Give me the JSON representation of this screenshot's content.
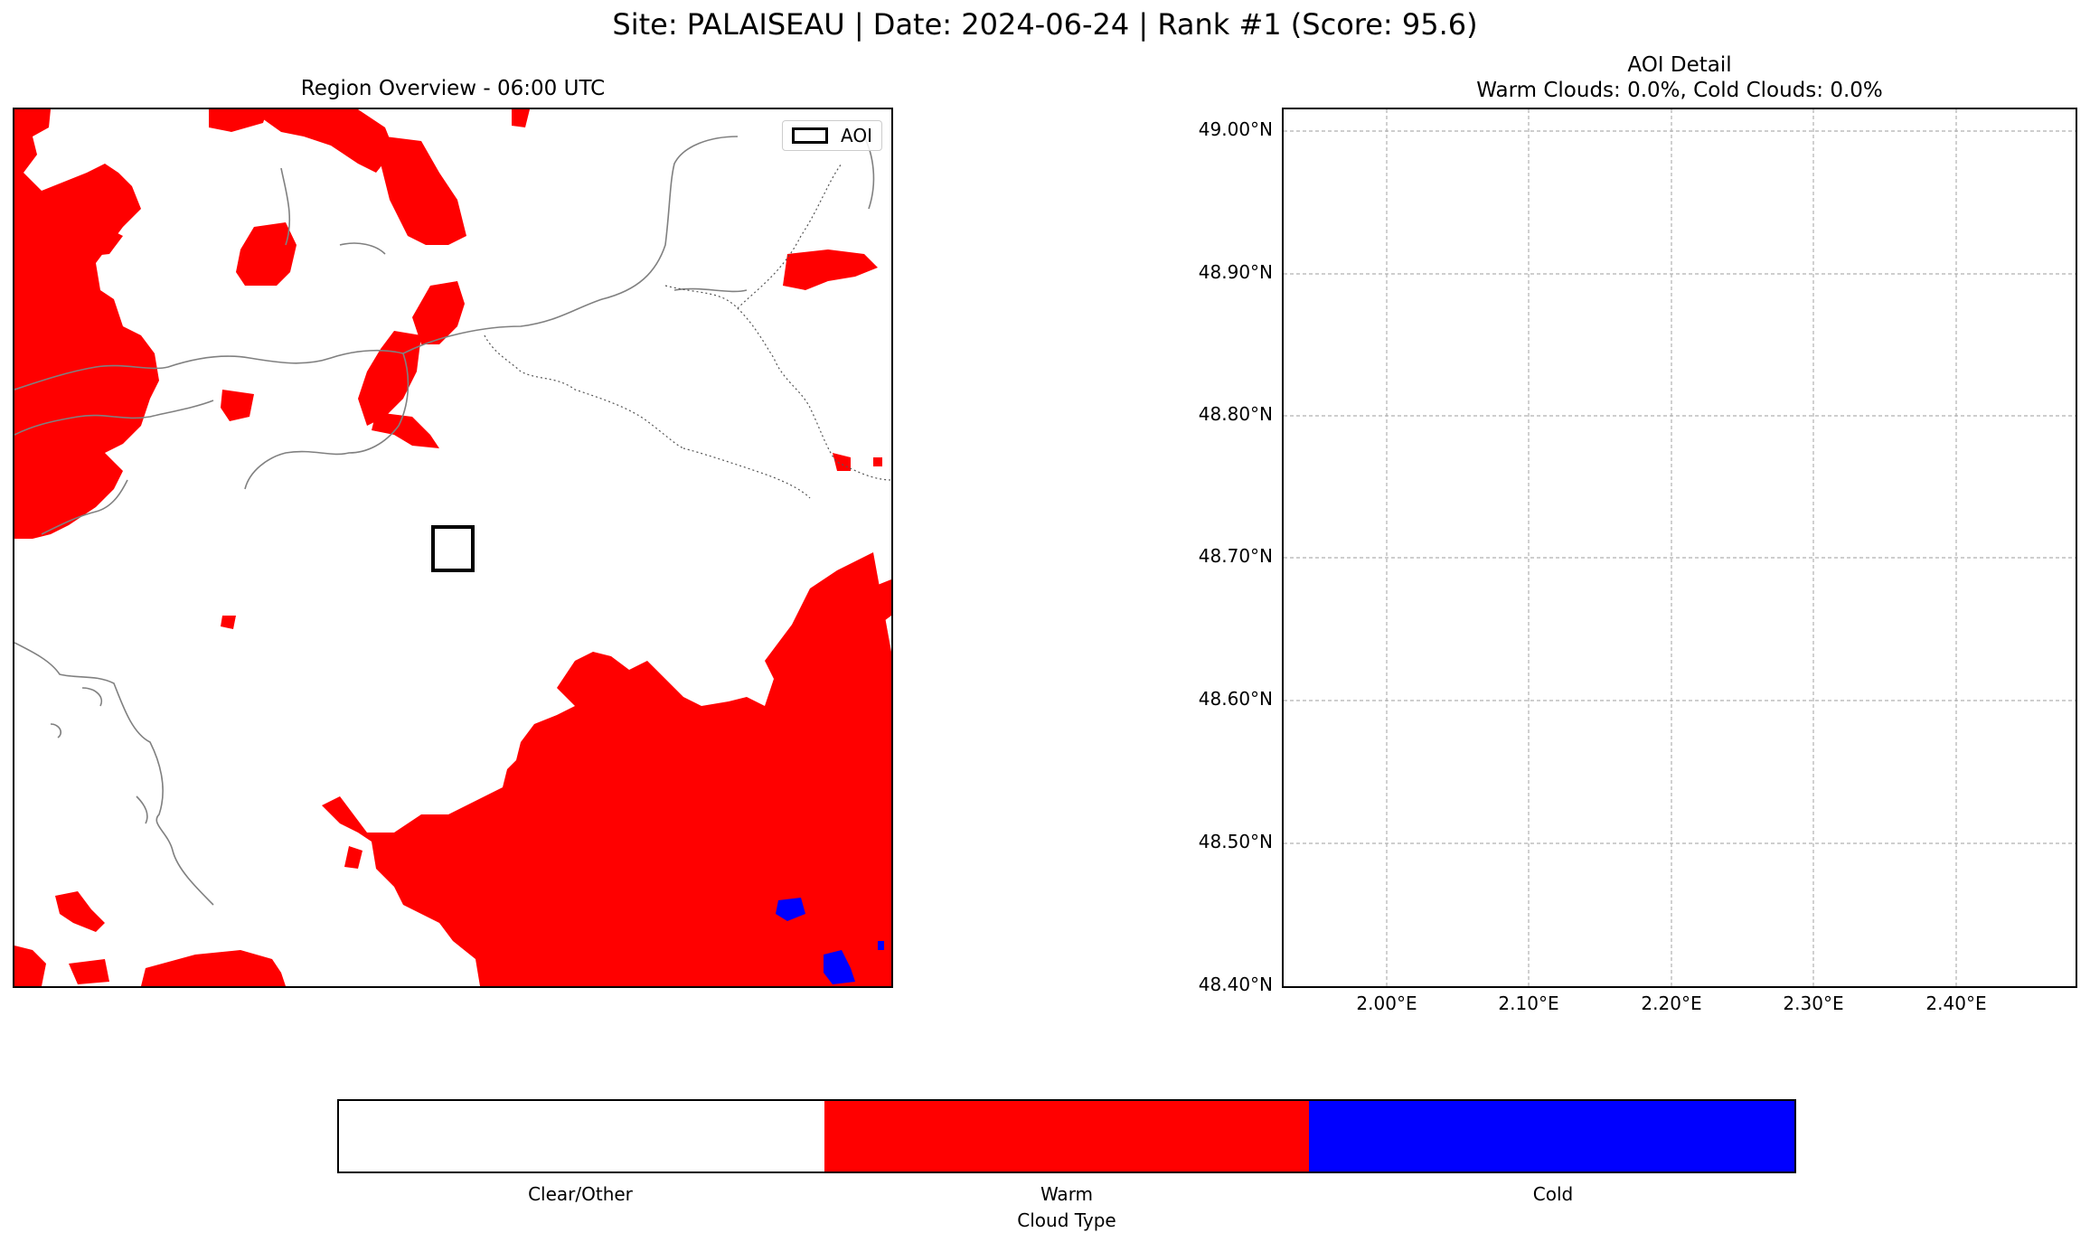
{
  "figure": {
    "suptitle": "Site: PALAISEAU | Date: 2024-06-24 | Rank #1 (Score: 95.6)"
  },
  "left_panel": {
    "title": "Region Overview - 06:00 UTC",
    "legend_label": "AOI"
  },
  "right_panel": {
    "title_line1": "AOI Detail",
    "title_line2": "Warm Clouds: 0.0%, Cold Clouds: 0.0%",
    "y_ticks": [
      "49.00°N",
      "48.90°N",
      "48.80°N",
      "48.70°N",
      "48.60°N",
      "48.50°N",
      "48.40°N"
    ],
    "x_ticks": [
      "2.00°E",
      "2.10°E",
      "2.20°E",
      "2.30°E",
      "2.40°E"
    ]
  },
  "colorbar": {
    "label": "Cloud Type",
    "categories": [
      "Clear/Other",
      "Warm",
      "Cold"
    ],
    "colors": [
      "#ffffff",
      "#ff0000",
      "#0000ff"
    ]
  },
  "chart_data": [
    {
      "type": "heatmap",
      "title": "Region Overview - 06:00 UTC",
      "categories": [
        "Clear/Other",
        "Warm",
        "Cold"
      ],
      "legend": [
        "AOI"
      ],
      "legend_position": "top-right"
    },
    {
      "type": "heatmap",
      "title": "AOI Detail",
      "subtitle": "Warm Clouds: 0.0%, Cold Clouds: 0.0%",
      "x_ticks": [
        2.0,
        2.1,
        2.2,
        2.3,
        2.4
      ],
      "y_ticks": [
        49.0,
        48.9,
        48.8,
        48.7,
        48.6,
        48.5,
        48.4
      ],
      "warm_clouds_percent": 0.0,
      "cold_clouds_percent": 0.0,
      "grid": true
    }
  ]
}
